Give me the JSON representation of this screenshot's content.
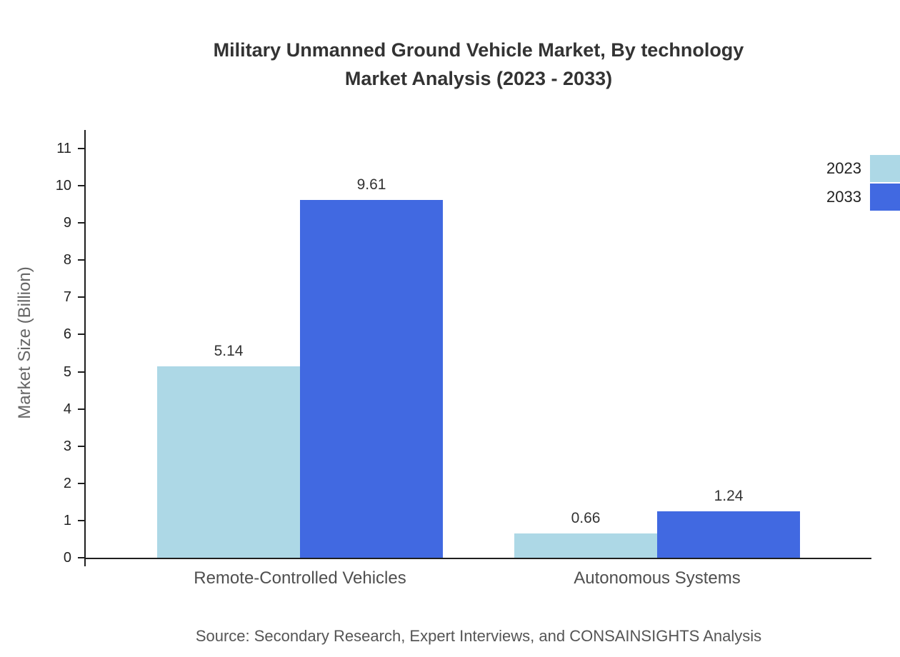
{
  "title": {
    "line1": "Military Unmanned Ground Vehicle Market, By technology",
    "line2": "Market Analysis (2023 - 2033)"
  },
  "source": "Source: Secondary Research, Expert Interviews, and CONSAINSIGHTS Analysis",
  "chart_data": {
    "type": "bar",
    "categories": [
      "Remote-Controlled Vehicles",
      "Autonomous Systems"
    ],
    "series": [
      {
        "name": "2023",
        "color": "#add8e6",
        "values": [
          5.14,
          0.66
        ]
      },
      {
        "name": "2033",
        "color": "#4169e1",
        "values": [
          9.61,
          1.24
        ]
      }
    ],
    "value_labels": [
      "5.14",
      "9.61",
      "0.66",
      "1.24"
    ],
    "xlabel": "",
    "ylabel": "Market Size (Billion)",
    "ylim": [
      0,
      11
    ],
    "ytick_step": 1,
    "grid": false,
    "legend_position": "top-right"
  }
}
